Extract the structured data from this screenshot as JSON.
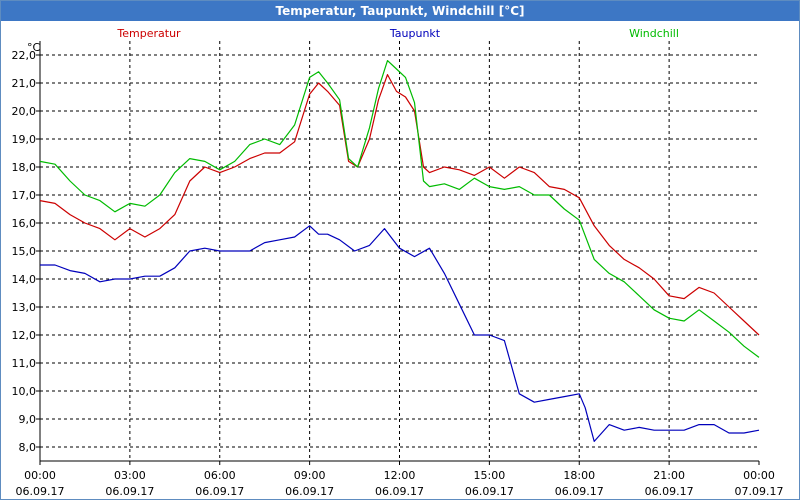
{
  "window": {
    "title": "Temperatur, Taupunkt, Windchill [°C]"
  },
  "chart_data": {
    "type": "line",
    "title": "Temperatur, Taupunkt, Windchill [°C]",
    "ylabel": "°C",
    "xlabel": "",
    "ylim": [
      7.5,
      22.5
    ],
    "xlim": [
      0,
      24
    ],
    "grid": true,
    "y_ticks": [
      "22,0",
      "21,0",
      "20,0",
      "19,0",
      "18,0",
      "17,0",
      "16,0",
      "15,0",
      "14,0",
      "13,0",
      "12,0",
      "11,0",
      "10,0",
      "9,0",
      "8,0"
    ],
    "y_tick_values": [
      22,
      21,
      20,
      19,
      18,
      17,
      16,
      15,
      14,
      13,
      12,
      11,
      10,
      9,
      8
    ],
    "x_tick_hours": [
      0,
      3,
      6,
      9,
      12,
      15,
      18,
      21,
      24
    ],
    "x_tick_times": [
      "00:00",
      "03:00",
      "06:00",
      "09:00",
      "12:00",
      "15:00",
      "18:00",
      "21:00",
      "00:00"
    ],
    "x_tick_dates": [
      "06.09.17",
      "06.09.17",
      "06.09.17",
      "06.09.17",
      "06.09.17",
      "06.09.17",
      "06.09.17",
      "06.09.17",
      "07.09.17"
    ],
    "series": [
      {
        "name": "Temperatur",
        "color": "#cc0000",
        "x": [
          0,
          0.5,
          1,
          1.5,
          2,
          2.5,
          3,
          3.5,
          4,
          4.5,
          5,
          5.5,
          6,
          6.5,
          7,
          7.5,
          8,
          8.5,
          9,
          9.3,
          9.6,
          10,
          10.3,
          10.6,
          11,
          11.3,
          11.6,
          11.9,
          12.2,
          12.5,
          12.8,
          13,
          13.5,
          14,
          14.5,
          15,
          15.5,
          16,
          16.5,
          17,
          17.5,
          18,
          18.5,
          19,
          19.5,
          20,
          20.5,
          21,
          21.5,
          22,
          22.5,
          23,
          23.5,
          24
        ],
        "values": [
          16.8,
          16.7,
          16.3,
          16.0,
          15.8,
          15.4,
          15.8,
          15.5,
          15.8,
          16.3,
          17.5,
          18.0,
          17.8,
          18.0,
          18.3,
          18.5,
          18.5,
          18.9,
          20.6,
          21.0,
          20.7,
          20.2,
          18.2,
          18.0,
          19.0,
          20.4,
          21.3,
          20.7,
          20.5,
          20.0,
          18.0,
          17.8,
          18.0,
          17.9,
          17.7,
          18.0,
          17.6,
          18.0,
          17.8,
          17.3,
          17.2,
          16.9,
          15.9,
          15.2,
          14.7,
          14.4,
          14.0,
          13.4,
          13.3,
          13.7,
          13.5,
          13.0,
          12.5,
          12.0
        ]
      },
      {
        "name": "Taupunkt",
        "color": "#0000bb",
        "x": [
          0,
          0.5,
          1,
          1.5,
          2,
          2.5,
          3,
          3.5,
          4,
          4.5,
          5,
          5.5,
          6,
          6.5,
          7,
          7.5,
          8,
          8.5,
          9,
          9.3,
          9.6,
          10,
          10.5,
          11,
          11.5,
          12,
          12.5,
          13,
          13.5,
          14,
          14.5,
          15,
          15.5,
          16,
          16.5,
          17,
          17.5,
          18,
          18.2,
          18.5,
          19,
          19.5,
          20,
          20.5,
          21,
          21.5,
          22,
          22.5,
          23,
          23.5,
          24
        ],
        "values": [
          14.5,
          14.5,
          14.3,
          14.2,
          13.9,
          14.0,
          14.0,
          14.1,
          14.1,
          14.4,
          15.0,
          15.1,
          15.0,
          15.0,
          15.0,
          15.3,
          15.4,
          15.5,
          15.9,
          15.6,
          15.6,
          15.4,
          15.0,
          15.2,
          15.8,
          15.1,
          14.8,
          15.1,
          14.2,
          13.1,
          12.0,
          12.0,
          11.8,
          9.9,
          9.6,
          9.7,
          9.8,
          9.9,
          9.4,
          8.2,
          8.8,
          8.6,
          8.7,
          8.6,
          8.6,
          8.6,
          8.8,
          8.8,
          8.5,
          8.5,
          8.6
        ]
      },
      {
        "name": "Windchill",
        "color": "#00bb00",
        "x": [
          0,
          0.5,
          1,
          1.5,
          2,
          2.5,
          3,
          3.5,
          4,
          4.5,
          5,
          5.5,
          6,
          6.5,
          7,
          7.5,
          8,
          8.5,
          9,
          9.3,
          9.6,
          10,
          10.3,
          10.6,
          11,
          11.3,
          11.6,
          11.9,
          12.2,
          12.5,
          12.8,
          13,
          13.5,
          14,
          14.5,
          15,
          15.5,
          16,
          16.5,
          17,
          17.5,
          18,
          18.5,
          19,
          19.5,
          20,
          20.5,
          21,
          21.5,
          22,
          22.5,
          23,
          23.5,
          24
        ],
        "values": [
          18.2,
          18.1,
          17.5,
          17.0,
          16.8,
          16.4,
          16.7,
          16.6,
          17.0,
          17.8,
          18.3,
          18.2,
          17.9,
          18.2,
          18.8,
          19.0,
          18.8,
          19.5,
          21.2,
          21.4,
          21.0,
          20.4,
          18.3,
          18.0,
          19.4,
          20.8,
          21.8,
          21.5,
          21.2,
          20.3,
          17.5,
          17.3,
          17.4,
          17.2,
          17.6,
          17.3,
          17.2,
          17.3,
          17.0,
          17.0,
          16.5,
          16.1,
          14.7,
          14.2,
          13.9,
          13.4,
          12.9,
          12.6,
          12.5,
          12.9,
          12.5,
          12.1,
          11.6,
          11.2
        ]
      }
    ]
  }
}
